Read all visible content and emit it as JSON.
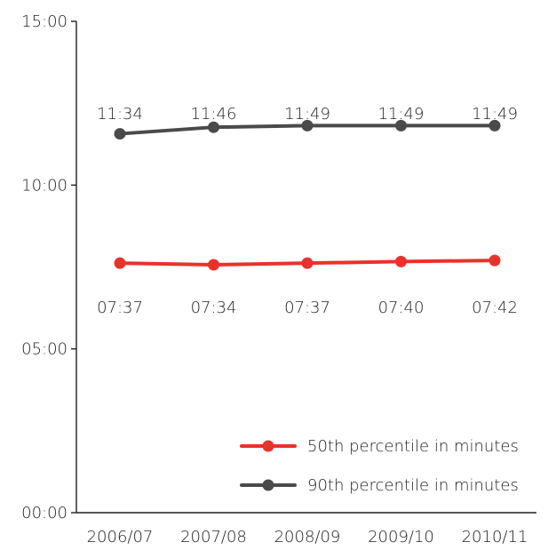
{
  "chart_data": {
    "type": "line",
    "categories": [
      "2006/07",
      "2007/08",
      "2008/09",
      "2009/10",
      "2010/11"
    ],
    "y_ticks": [
      "00:00",
      "05:00",
      "10:00",
      "15:00"
    ],
    "ylim": [
      0,
      15
    ],
    "grid": false,
    "legend_position": "bottom-right",
    "series": [
      {
        "name": "50th percentile in minutes",
        "color": "#e8322b",
        "values": [
          7.617,
          7.567,
          7.617,
          7.667,
          7.7
        ],
        "labels": [
          "07:37",
          "07:34",
          "07:37",
          "07:40",
          "07:42"
        ]
      },
      {
        "name": "90th percentile in minutes",
        "color": "#4a4a4a",
        "values": [
          11.567,
          11.767,
          11.817,
          11.817,
          11.817
        ],
        "labels": [
          "11:34",
          "11:46",
          "11:49",
          "11:49",
          "11:49"
        ]
      }
    ]
  }
}
